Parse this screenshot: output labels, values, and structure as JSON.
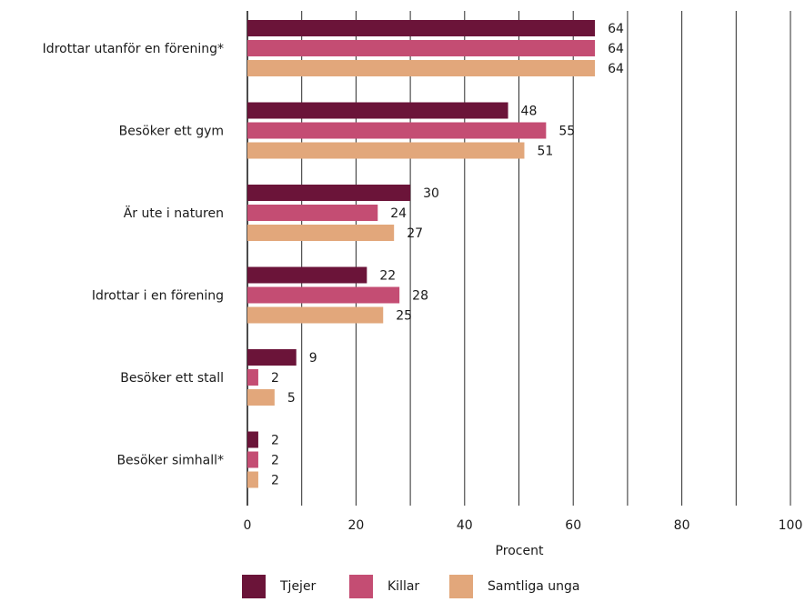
{
  "chart_data": {
    "type": "bar",
    "orientation": "horizontal",
    "categories": [
      "Idrottar utanför en förening*",
      "Besöker ett gym",
      "Är ute i naturen",
      "Idrottar i en förening",
      "Besöker ett stall",
      "Besöker simhall*"
    ],
    "series": [
      {
        "name": "Tjejer",
        "color": "#6b1439",
        "values": [
          64,
          48,
          30,
          22,
          9,
          2
        ]
      },
      {
        "name": "Killar",
        "color": "#c44d73",
        "values": [
          64,
          55,
          24,
          28,
          2,
          2
        ]
      },
      {
        "name": "Samtliga unga",
        "color": "#e2a77b",
        "values": [
          64,
          51,
          27,
          25,
          5,
          2
        ]
      }
    ],
    "xlim": [
      0,
      100
    ],
    "xticks": [
      "0",
      "20",
      "40",
      "60",
      "80",
      "100"
    ],
    "xlabel": "Procent",
    "grid": true,
    "legend_position": "bottom"
  }
}
